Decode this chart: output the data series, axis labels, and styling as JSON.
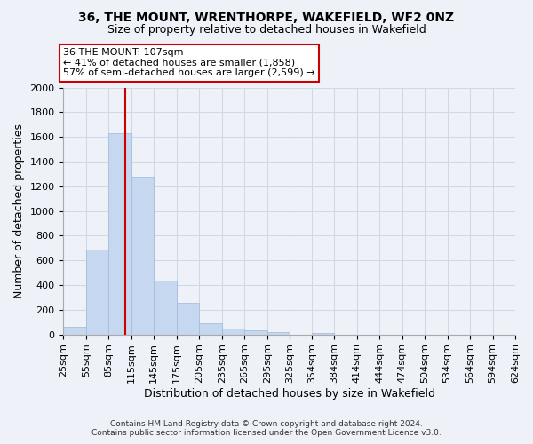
{
  "title": "36, THE MOUNT, WRENTHORPE, WAKEFIELD, WF2 0NZ",
  "subtitle": "Size of property relative to detached houses in Wakefield",
  "xlabel": "Distribution of detached houses by size in Wakefield",
  "ylabel": "Number of detached properties",
  "bar_color": "#c5d8f0",
  "bar_edge_color": "#a0b8d8",
  "grid_color": "#d0d8e8",
  "background_color": "#eef2f8",
  "bar_values": [
    65,
    690,
    1630,
    1280,
    435,
    255,
    90,
    50,
    30,
    20,
    0,
    15,
    0,
    0,
    0,
    0,
    0,
    0,
    0,
    0
  ],
  "x_labels": [
    "25sqm",
    "55sqm",
    "85sqm",
    "115sqm",
    "145sqm",
    "175sqm",
    "205sqm",
    "235sqm",
    "265sqm",
    "295sqm",
    "325sqm",
    "354sqm",
    "384sqm",
    "414sqm",
    "444sqm",
    "474sqm",
    "504sqm",
    "534sqm",
    "564sqm",
    "594sqm",
    "624sqm"
  ],
  "ylim": [
    0,
    2000
  ],
  "yticks": [
    0,
    200,
    400,
    600,
    800,
    1000,
    1200,
    1400,
    1600,
    1800,
    2000
  ],
  "property_line_x": 107,
  "bin_edges": [
    25,
    55,
    85,
    115,
    145,
    175,
    205,
    235,
    265,
    295,
    325,
    354,
    384,
    414,
    444,
    474,
    504,
    534,
    564,
    594,
    624
  ],
  "annotation_title": "36 THE MOUNT: 107sqm",
  "annotation_line1": "← 41% of detached houses are smaller (1,858)",
  "annotation_line2": "57% of semi-detached houses are larger (2,599) →",
  "annotation_box_color": "#ffffff",
  "annotation_border_color": "#cc0000",
  "vline_color": "#cc0000",
  "footer_line1": "Contains HM Land Registry data © Crown copyright and database right 2024.",
  "footer_line2": "Contains public sector information licensed under the Open Government Licence v3.0."
}
